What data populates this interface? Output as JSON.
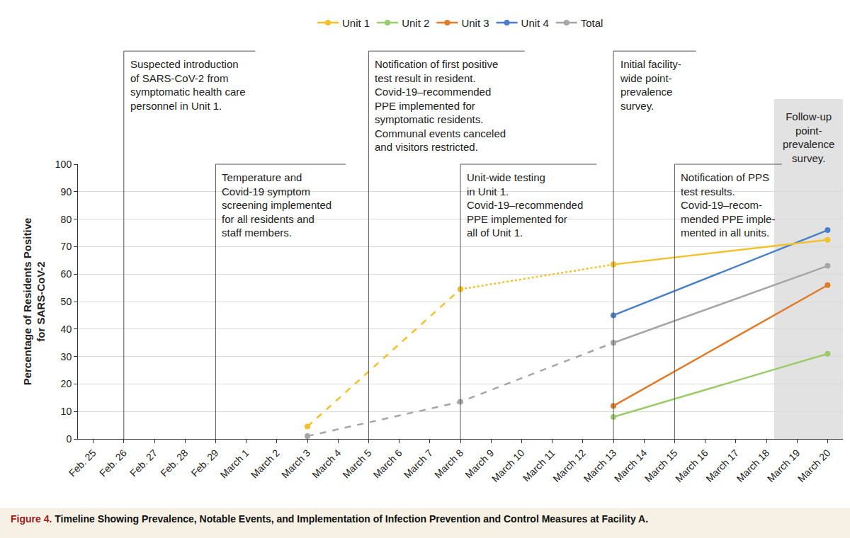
{
  "chart_data": {
    "type": "line",
    "title": "Figure 4. Timeline Showing Prevalence, Notable Events, and Implementation of Infection Prevention and Control Measures at Facility A.",
    "ylabel": [
      "Percentage of Residents Positive",
      "for SARS-CoV-2"
    ],
    "categories": [
      "Feb. 25",
      "Feb. 26",
      "Feb. 27",
      "Feb. 28",
      "Feb. 29",
      "March 1",
      "March 2",
      "March 3",
      "March 4",
      "March 5",
      "March 6",
      "March 7",
      "March 8",
      "March 9",
      "March 10",
      "March 11",
      "March 12",
      "March 13",
      "March 14",
      "March 15",
      "March 16",
      "March 17",
      "March 18",
      "March 19",
      "March 20"
    ],
    "ylim": [
      0,
      100
    ],
    "yticks": [
      0,
      10,
      20,
      30,
      40,
      50,
      60,
      70,
      80,
      90,
      100
    ],
    "grid": true,
    "legend": "top",
    "marker": "circle",
    "series": [
      {
        "name": "Unit 1",
        "color": "#f2c12e",
        "line_style": "dashed",
        "x": [
          "March 3",
          "March 8"
        ],
        "values": [
          4.5,
          54.5
        ]
      },
      {
        "name": "Unit 2",
        "color": "#9dcb6b",
        "line_style": "solid",
        "x": [
          "March 13",
          "March 20"
        ],
        "values": [
          8,
          31
        ]
      },
      {
        "name": "Unit 3",
        "color": "#e07b2a",
        "line_style": "solid",
        "x": [
          "March 13",
          "March 20"
        ],
        "values": [
          12,
          56
        ]
      },
      {
        "name": "Unit 4",
        "color": "#4a7fc6",
        "line_style": "solid",
        "x": [
          "March 13",
          "March 20"
        ],
        "values": [
          45,
          76
        ]
      },
      {
        "name": "Total",
        "color": "#a6a6a6",
        "line_style": "dashed",
        "x": [
          "March 3",
          "March 8",
          "March 13"
        ],
        "values": [
          1,
          13.5,
          35
        ]
      },
      {
        "name": "Total",
        "color": "#a6a6a6",
        "line_style": "solid",
        "x": [
          "March 13",
          "March 20"
        ],
        "values": [
          35,
          63
        ]
      },
      {
        "name": "Unit 1",
        "color": "#f2c12e",
        "line_style": "dotted",
        "x": [
          "March 8",
          "March 13"
        ],
        "values": [
          54.5,
          63.5
        ]
      },
      {
        "name": "Unit 1",
        "color": "#f2c12e",
        "line_style": "solid",
        "x": [
          "March 13",
          "March 20"
        ],
        "values": [
          63.5,
          72.5
        ]
      }
    ],
    "annotations": [
      {
        "x": "Feb. 26",
        "lines": [
          "Suspected introduction",
          "of SARS-CoV-2 from",
          "symptomatic health care",
          "personnel in Unit 1."
        ]
      },
      {
        "x": "Feb. 29",
        "lines": [
          "Temperature and",
          "Covid-19 symptom",
          "screening implemented",
          "for all residents and",
          "staff members."
        ]
      },
      {
        "x": "March 5",
        "lines": [
          "Notification of first positive",
          "test result in resident.",
          "Covid-19–recommended",
          "PPE implemented for",
          "symptomatic residents.",
          "Communal events canceled",
          "and visitors restricted."
        ]
      },
      {
        "x": "March 8",
        "lines": [
          "Unit-wide testing",
          "in Unit 1.",
          "Covid-19–recommended",
          "PPE implemented for",
          "all of Unit 1."
        ]
      },
      {
        "x": "March 13",
        "lines": [
          "Initial facility-",
          "wide point-",
          "prevalence",
          "survey."
        ]
      },
      {
        "x": "March 15",
        "lines": [
          "Notification of PPS",
          "test results.",
          "Covid-19–recom-",
          "mended PPE imple-",
          "mented in all units."
        ]
      }
    ],
    "highlight": {
      "x": "March 20",
      "lines": [
        "Follow-up",
        "point-",
        "prevalence",
        "survey."
      ]
    }
  }
}
